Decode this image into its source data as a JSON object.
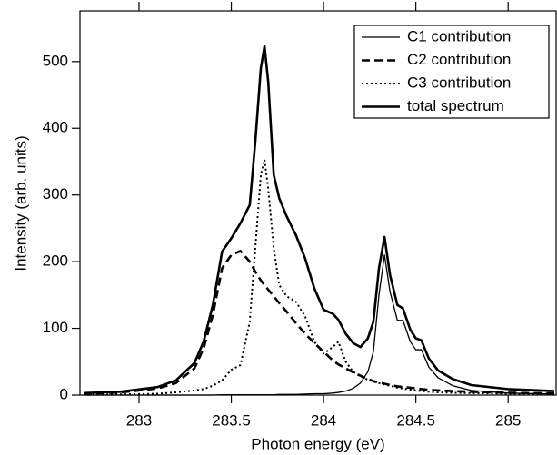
{
  "chart_data": {
    "type": "line",
    "x_label": "Photon energy (eV)",
    "y_label": "Intensity (arb. units)",
    "x": [
      282.7,
      282.9,
      283.1,
      283.2,
      283.3,
      283.35,
      283.4,
      283.45,
      283.5,
      283.55,
      283.6,
      283.63,
      283.66,
      283.68,
      283.7,
      283.73,
      283.76,
      283.8,
      283.85,
      283.9,
      283.95,
      284.0,
      284.05,
      284.08,
      284.12,
      284.16,
      284.2,
      284.24,
      284.27,
      284.3,
      284.33,
      284.36,
      284.4,
      284.43,
      284.47,
      284.5,
      284.53,
      284.57,
      284.62,
      284.7,
      284.8,
      285.0,
      285.25
    ],
    "series": [
      {
        "name": "C1 contribution",
        "color": "#000000",
        "line_style": "solid",
        "line_width": 1.3,
        "values": [
          0,
          0,
          0,
          0,
          0,
          0,
          0,
          0.5,
          0.5,
          0.5,
          0.5,
          0.5,
          0.5,
          0.5,
          0.5,
          0.5,
          1,
          1,
          1,
          1.5,
          2,
          2,
          3,
          4,
          6,
          10,
          18,
          35,
          65,
          150,
          210,
          155,
          112,
          112,
          80,
          68,
          68,
          42,
          26,
          14,
          7,
          3,
          1.5
        ]
      },
      {
        "name": "C2 contribution",
        "color": "#000000",
        "line_style": "dashed",
        "line_width": 2.6,
        "values": [
          2,
          4,
          10,
          18,
          40,
          70,
          120,
          190,
          210,
          216,
          200,
          185,
          172,
          165,
          158,
          148,
          138,
          125,
          108,
          92,
          78,
          65,
          52,
          46,
          40,
          34,
          29,
          24,
          21,
          19,
          17,
          15,
          13,
          12,
          11,
          10,
          9,
          8,
          7,
          6,
          5,
          3.5,
          2.5
        ]
      },
      {
        "name": "C3 contribution",
        "color": "#000000",
        "line_style": "dotted",
        "line_width": 2,
        "values": [
          0.5,
          1,
          2,
          4,
          7,
          9,
          14,
          22,
          38,
          45,
          110,
          220,
          330,
          353,
          310,
          220,
          165,
          148,
          140,
          118,
          80,
          62,
          72,
          80,
          50,
          35,
          28,
          23,
          20,
          18,
          16,
          14,
          11,
          10,
          8,
          7,
          6,
          5,
          4,
          3.5,
          3,
          2,
          1.5
        ]
      },
      {
        "name": "total spectrum",
        "color": "#000000",
        "line_style": "solid",
        "line_width": 2.6,
        "values": [
          3,
          5,
          12,
          22,
          48,
          80,
          135,
          215,
          235,
          258,
          285,
          380,
          490,
          523,
          470,
          330,
          295,
          268,
          240,
          205,
          160,
          128,
          122,
          113,
          92,
          78,
          72,
          85,
          110,
          190,
          237,
          180,
          135,
          130,
          98,
          85,
          82,
          55,
          37,
          24,
          15,
          9,
          6
        ]
      }
    ],
    "xlim": [
      282.68,
      285.26
    ],
    "ylim": [
      0,
      576
    ],
    "xticks": [
      283,
      283.5,
      284,
      284.5,
      285
    ],
    "yticks": [
      0,
      100,
      200,
      300,
      400,
      500
    ],
    "grid": false,
    "legend": "upper right"
  }
}
